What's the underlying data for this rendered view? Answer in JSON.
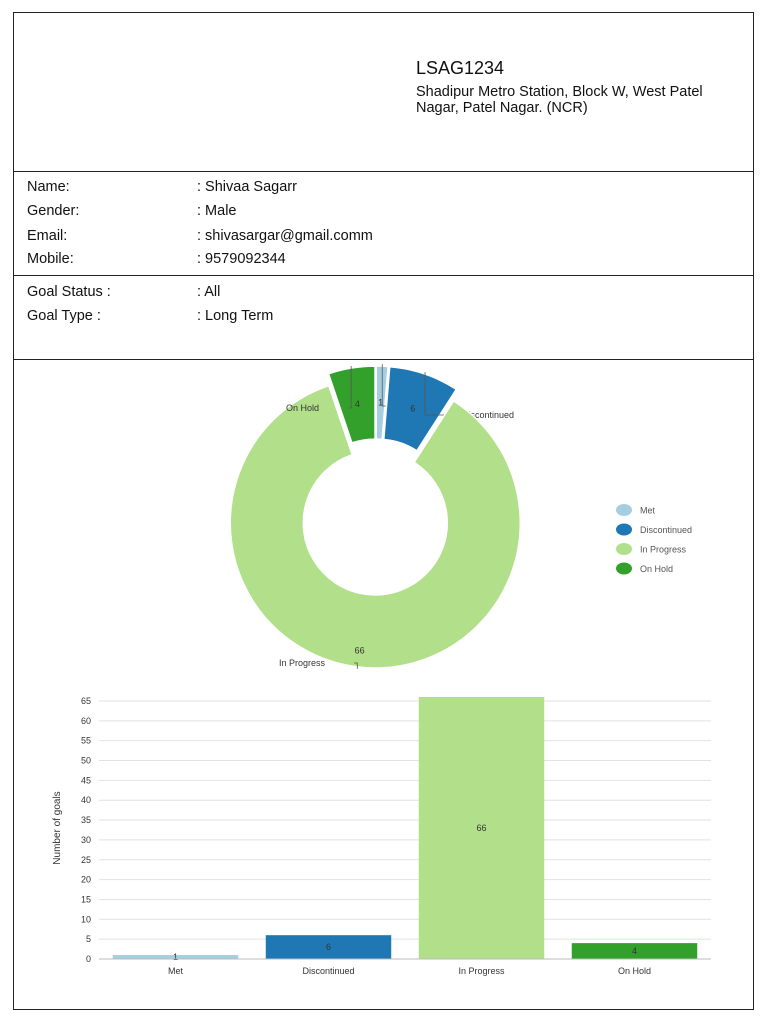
{
  "header": {
    "code": "LSAG1234",
    "address": "Shadipur Metro Station, Block W, West Patel Nagar, Patel Nagar. (NCR)"
  },
  "person": {
    "name_label": "Name:",
    "name_value": ": Shivaa Sagarr",
    "gender_label": "Gender:",
    "gender_value": ": Male",
    "email_label": "Email:",
    "email_value": ": shivasargar@gmail.comm",
    "mobile_label": "Mobile:",
    "mobile_value": ": 9579092344"
  },
  "goals": {
    "status_label": "Goal Status :",
    "status_value": ": All",
    "type_label": "Goal Type :",
    "type_value": ": Long Term"
  },
  "colors": {
    "Met": "#a6cee3",
    "Discontinued": "#1f78b4",
    "In Progress": "#b2df8a",
    "On Hold": "#33a02c"
  },
  "chart_data": [
    {
      "type": "pie",
      "title": "",
      "categories": [
        "Met",
        "Discontinued",
        "In Progress",
        "On Hold"
      ],
      "values": [
        1,
        6,
        66,
        4
      ],
      "legend": "right"
    },
    {
      "type": "bar",
      "title": "",
      "categories": [
        "Met",
        "Discontinued",
        "In Progress",
        "On Hold"
      ],
      "values": [
        1,
        6,
        66,
        4
      ],
      "xlabel": "",
      "ylabel": "Number of goals",
      "ylim": [
        0,
        66
      ],
      "yticks": [
        0,
        5,
        10,
        15,
        20,
        25,
        30,
        35,
        40,
        45,
        50,
        55,
        60,
        65
      ]
    }
  ]
}
